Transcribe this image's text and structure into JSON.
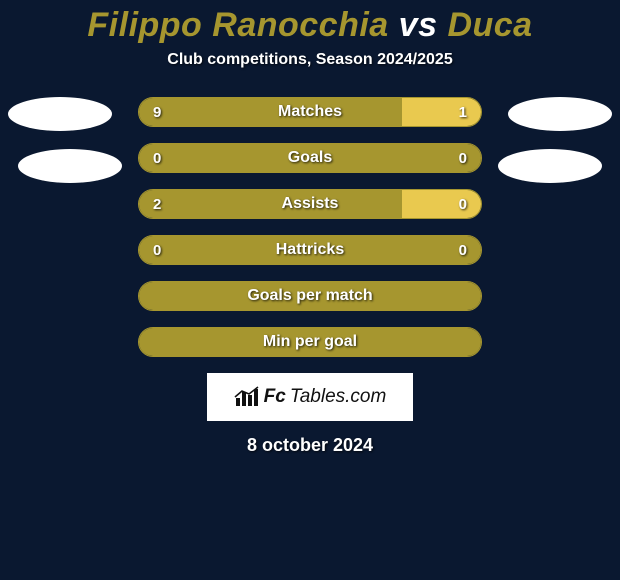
{
  "background_color": "#0a1830",
  "title": {
    "player1": "Filippo Ranocchia",
    "vs": "vs",
    "player2": "Duca",
    "color_player": "#a6962f",
    "color_vs": "#ffffff",
    "fontsize": 34
  },
  "subtitle": {
    "text": "Club competitions, Season 2024/2025",
    "fontsize": 16,
    "color": "#ffffff"
  },
  "colors": {
    "left_fill": "#a6962f",
    "right_fill": "#e9c94f",
    "bar_border": "#a6962f",
    "bar_empty": "#0a1830",
    "text": "#ffffff"
  },
  "typography": {
    "bar_label_fontsize": 16,
    "bar_value_fontsize": 15
  },
  "bars": [
    {
      "label": "Matches",
      "left_value": "9",
      "right_value": "1",
      "left_pct": 77,
      "right_pct": 23,
      "show_values": true
    },
    {
      "label": "Goals",
      "left_value": "0",
      "right_value": "0",
      "left_pct": 100,
      "right_pct": 0,
      "show_values": true
    },
    {
      "label": "Assists",
      "left_value": "2",
      "right_value": "0",
      "left_pct": 77,
      "right_pct": 23,
      "show_values": true
    },
    {
      "label": "Hattricks",
      "left_value": "0",
      "right_value": "0",
      "left_pct": 100,
      "right_pct": 0,
      "show_values": true
    },
    {
      "label": "Goals per match",
      "left_value": "",
      "right_value": "",
      "left_pct": 100,
      "right_pct": 0,
      "show_values": false
    },
    {
      "label": "Min per goal",
      "left_value": "",
      "right_value": "",
      "left_pct": 100,
      "right_pct": 0,
      "show_values": false
    }
  ],
  "brand": {
    "icon_name": "bars-logo-icon",
    "text_fc": "Fc",
    "text_tables": "Tables.com",
    "bg": "#ffffff",
    "text_color": "#111111"
  },
  "date": {
    "text": "8 october 2024",
    "fontsize": 18,
    "color": "#ffffff"
  },
  "logo_ellipse_color": "#ffffff"
}
